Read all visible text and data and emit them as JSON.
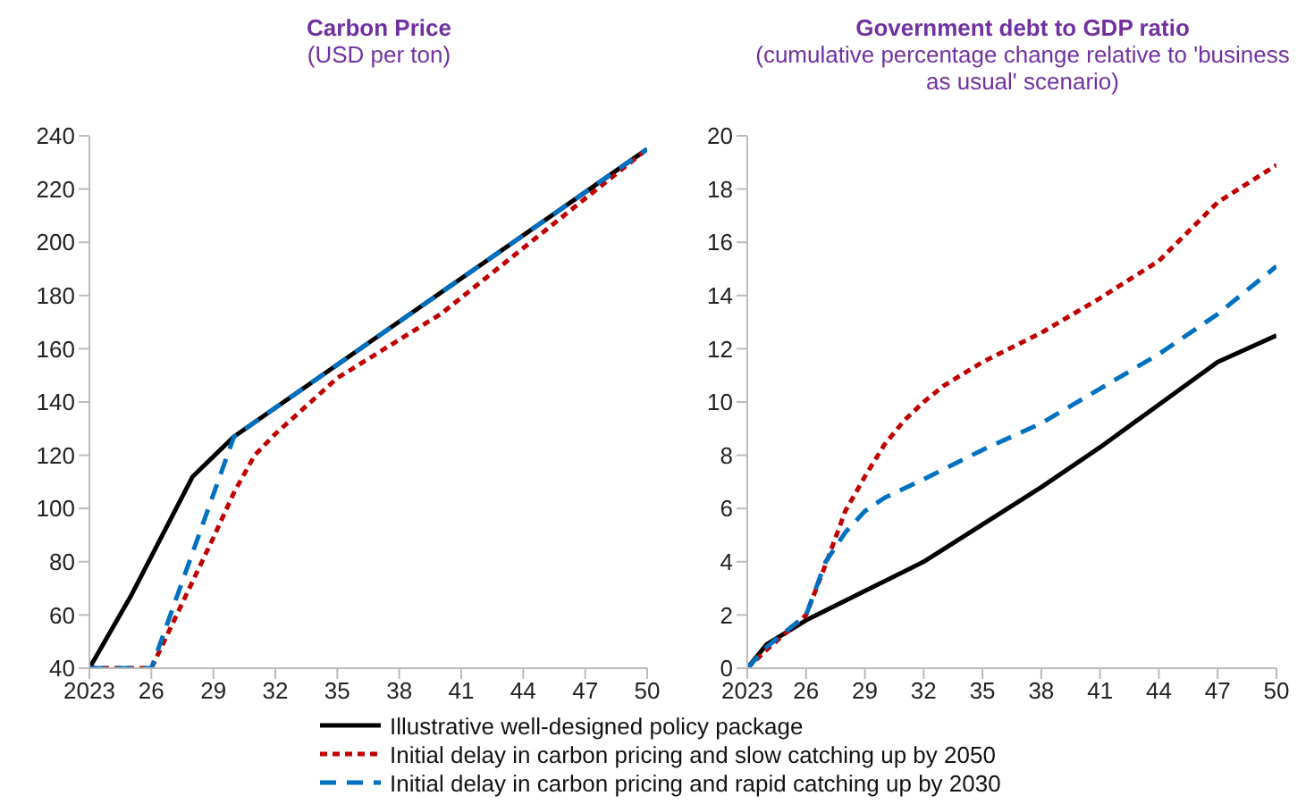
{
  "chart_data": [
    {
      "type": "line",
      "title": "Carbon Price",
      "subtitle": "(USD per ton)",
      "xlim": [
        2023,
        2050
      ],
      "xticks": [
        {
          "value": 2023,
          "label": "2023"
        },
        {
          "value": 2026,
          "label": "26"
        },
        {
          "value": 2029,
          "label": "29"
        },
        {
          "value": 2032,
          "label": "32"
        },
        {
          "value": 2035,
          "label": "35"
        },
        {
          "value": 2038,
          "label": "38"
        },
        {
          "value": 2041,
          "label": "41"
        },
        {
          "value": 2044,
          "label": "44"
        },
        {
          "value": 2047,
          "label": "47"
        },
        {
          "value": 2050,
          "label": "50"
        }
      ],
      "ylim": [
        40,
        240
      ],
      "yticks": [
        40,
        60,
        80,
        100,
        120,
        140,
        160,
        180,
        200,
        220,
        240
      ],
      "grid": false,
      "legend": "bottom",
      "series": [
        {
          "name": "Illustrative well-designed policy package",
          "color": "#000000",
          "line_style": "solid",
          "x": [
            2023,
            2025,
            2027,
            2028,
            2030,
            2040,
            2050
          ],
          "values": [
            40,
            67,
            97,
            112,
            127,
            181,
            235
          ]
        },
        {
          "name": "Initial delay in carbon pricing and slow catching up by 2050",
          "color": "#c00000",
          "line_style": "dotted",
          "x": [
            2023,
            2026,
            2029,
            2030,
            2031,
            2032,
            2035,
            2040,
            2045,
            2050
          ],
          "values": [
            40,
            40,
            89,
            106,
            120,
            128,
            149,
            173,
            204,
            235
          ]
        },
        {
          "name": "Initial delay in carbon pricing and rapid catching up by 2030",
          "color": "#0070c0",
          "line_style": "dashed",
          "x": [
            2023,
            2026,
            2030,
            2040,
            2050
          ],
          "values": [
            40,
            40,
            127,
            181,
            235
          ]
        }
      ]
    },
    {
      "type": "line",
      "title": "Government debt to GDP ratio",
      "subtitle": "(cumulative percentage change relative to 'business as usual' scenario)",
      "xlim": [
        2023,
        2050
      ],
      "xticks": [
        {
          "value": 2023,
          "label": "2023"
        },
        {
          "value": 2026,
          "label": "26"
        },
        {
          "value": 2029,
          "label": "29"
        },
        {
          "value": 2032,
          "label": "32"
        },
        {
          "value": 2035,
          "label": "35"
        },
        {
          "value": 2038,
          "label": "38"
        },
        {
          "value": 2041,
          "label": "41"
        },
        {
          "value": 2044,
          "label": "44"
        },
        {
          "value": 2047,
          "label": "47"
        },
        {
          "value": 2050,
          "label": "50"
        }
      ],
      "ylim": [
        0,
        20
      ],
      "yticks": [
        0,
        2,
        4,
        6,
        8,
        10,
        12,
        14,
        16,
        18,
        20
      ],
      "grid": false,
      "series": [
        {
          "color": "#000000",
          "line_style": "solid",
          "x": [
            2023,
            2024,
            2026,
            2029,
            2032,
            2035,
            2038,
            2041,
            2044,
            2047,
            2050
          ],
          "values": [
            0,
            0.9,
            1.8,
            2.9,
            4.0,
            5.4,
            6.8,
            8.3,
            9.9,
            11.5,
            12.5
          ]
        },
        {
          "color": "#c00000",
          "line_style": "dotted",
          "x": [
            2023,
            2024,
            2026,
            2027,
            2028,
            2029,
            2030,
            2031,
            2032,
            2033,
            2035,
            2038,
            2041,
            2044,
            2047,
            2050
          ],
          "values": [
            0,
            0.7,
            2.0,
            3.9,
            5.9,
            7.2,
            8.4,
            9.3,
            10.0,
            10.6,
            11.5,
            12.6,
            13.9,
            15.3,
            17.5,
            18.9
          ]
        },
        {
          "color": "#0070c0",
          "line_style": "dashed",
          "x": [
            2023,
            2024,
            2026,
            2027,
            2028,
            2029,
            2030,
            2032,
            2035,
            2038,
            2041,
            2044,
            2047,
            2050
          ],
          "values": [
            0,
            0.8,
            2.0,
            4.0,
            5.1,
            5.9,
            6.4,
            7.1,
            8.2,
            9.2,
            10.5,
            11.8,
            13.3,
            15.1
          ]
        }
      ]
    }
  ]
}
